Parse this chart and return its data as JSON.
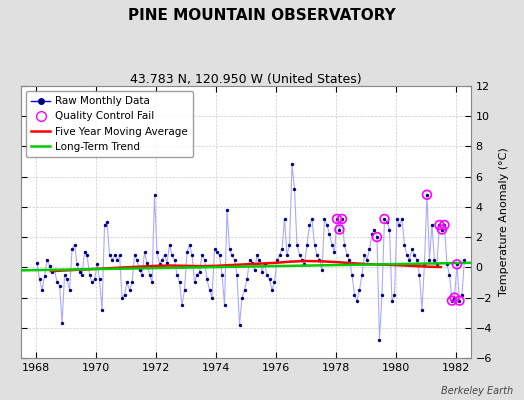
{
  "title": "PINE MOUNTAIN OBSERVATORY",
  "subtitle": "43.783 N, 120.950 W (United States)",
  "ylabel": "Temperature Anomaly (°C)",
  "attribution": "Berkeley Earth",
  "xlim": [
    1967.5,
    1982.5
  ],
  "ylim": [
    -6,
    12
  ],
  "yticks": [
    -6,
    -4,
    -2,
    0,
    2,
    4,
    6,
    8,
    10,
    12
  ],
  "xticks": [
    1968,
    1970,
    1972,
    1974,
    1976,
    1978,
    1980,
    1982
  ],
  "bg_color": "#e0e0e0",
  "plot_bg_color": "#ffffff",
  "raw_line_color": "#aaaaff",
  "raw_marker_color": "#000080",
  "qc_fail_color": "#ff00ff",
  "moving_avg_color": "#ff0000",
  "trend_color": "#00cc00",
  "raw_monthly_data": [
    [
      1968.042,
      0.3
    ],
    [
      1968.125,
      -0.8
    ],
    [
      1968.208,
      -1.5
    ],
    [
      1968.292,
      -0.6
    ],
    [
      1968.375,
      0.5
    ],
    [
      1968.458,
      0.1
    ],
    [
      1968.542,
      -0.3
    ],
    [
      1968.625,
      -0.2
    ],
    [
      1968.708,
      -1.0
    ],
    [
      1968.792,
      -1.2
    ],
    [
      1968.875,
      -3.7
    ],
    [
      1968.958,
      -0.5
    ],
    [
      1969.042,
      -0.8
    ],
    [
      1969.125,
      -1.5
    ],
    [
      1969.208,
      1.2
    ],
    [
      1969.292,
      1.5
    ],
    [
      1969.375,
      0.2
    ],
    [
      1969.458,
      -0.3
    ],
    [
      1969.542,
      -0.5
    ],
    [
      1969.625,
      1.0
    ],
    [
      1969.708,
      0.8
    ],
    [
      1969.792,
      -0.5
    ],
    [
      1969.875,
      -1.0
    ],
    [
      1969.958,
      -0.8
    ],
    [
      1970.042,
      0.2
    ],
    [
      1970.125,
      -0.8
    ],
    [
      1970.208,
      -2.8
    ],
    [
      1970.292,
      2.8
    ],
    [
      1970.375,
      3.0
    ],
    [
      1970.458,
      0.8
    ],
    [
      1970.542,
      0.5
    ],
    [
      1970.625,
      0.8
    ],
    [
      1970.708,
      0.5
    ],
    [
      1970.792,
      0.8
    ],
    [
      1970.875,
      -2.0
    ],
    [
      1970.958,
      -1.8
    ],
    [
      1971.042,
      -1.0
    ],
    [
      1971.125,
      -1.5
    ],
    [
      1971.208,
      -1.0
    ],
    [
      1971.292,
      0.8
    ],
    [
      1971.375,
      0.5
    ],
    [
      1971.458,
      -0.2
    ],
    [
      1971.542,
      -0.5
    ],
    [
      1971.625,
      1.0
    ],
    [
      1971.708,
      0.3
    ],
    [
      1971.792,
      -0.5
    ],
    [
      1971.875,
      -1.0
    ],
    [
      1971.958,
      4.8
    ],
    [
      1972.042,
      1.0
    ],
    [
      1972.125,
      0.2
    ],
    [
      1972.208,
      0.5
    ],
    [
      1972.292,
      0.8
    ],
    [
      1972.375,
      0.3
    ],
    [
      1972.458,
      1.5
    ],
    [
      1972.542,
      0.8
    ],
    [
      1972.625,
      0.5
    ],
    [
      1972.708,
      -0.5
    ],
    [
      1972.792,
      -1.0
    ],
    [
      1972.875,
      -2.5
    ],
    [
      1972.958,
      -1.5
    ],
    [
      1973.042,
      1.0
    ],
    [
      1973.125,
      1.5
    ],
    [
      1973.208,
      0.8
    ],
    [
      1973.292,
      -1.0
    ],
    [
      1973.375,
      -0.5
    ],
    [
      1973.458,
      -0.3
    ],
    [
      1973.542,
      0.8
    ],
    [
      1973.625,
      0.5
    ],
    [
      1973.708,
      -0.8
    ],
    [
      1973.792,
      -1.5
    ],
    [
      1973.875,
      -2.0
    ],
    [
      1973.958,
      1.2
    ],
    [
      1974.042,
      1.0
    ],
    [
      1974.125,
      0.8
    ],
    [
      1974.208,
      -0.5
    ],
    [
      1974.292,
      -2.5
    ],
    [
      1974.375,
      3.8
    ],
    [
      1974.458,
      1.2
    ],
    [
      1974.542,
      0.8
    ],
    [
      1974.625,
      0.5
    ],
    [
      1974.708,
      -0.5
    ],
    [
      1974.792,
      -3.8
    ],
    [
      1974.875,
      -2.0
    ],
    [
      1974.958,
      -1.5
    ],
    [
      1975.042,
      -0.8
    ],
    [
      1975.125,
      0.5
    ],
    [
      1975.208,
      0.3
    ],
    [
      1975.292,
      -0.2
    ],
    [
      1975.375,
      0.8
    ],
    [
      1975.458,
      0.5
    ],
    [
      1975.542,
      -0.3
    ],
    [
      1975.625,
      0.2
    ],
    [
      1975.708,
      -0.5
    ],
    [
      1975.792,
      -0.8
    ],
    [
      1975.875,
      -1.5
    ],
    [
      1975.958,
      -1.0
    ],
    [
      1976.042,
      0.5
    ],
    [
      1976.125,
      0.8
    ],
    [
      1976.208,
      1.2
    ],
    [
      1976.292,
      3.2
    ],
    [
      1976.375,
      0.8
    ],
    [
      1976.458,
      1.5
    ],
    [
      1976.542,
      6.8
    ],
    [
      1976.625,
      5.2
    ],
    [
      1976.708,
      1.5
    ],
    [
      1976.792,
      0.8
    ],
    [
      1976.875,
      0.5
    ],
    [
      1976.958,
      0.2
    ],
    [
      1977.042,
      1.5
    ],
    [
      1977.125,
      2.8
    ],
    [
      1977.208,
      3.2
    ],
    [
      1977.292,
      1.5
    ],
    [
      1977.375,
      0.8
    ],
    [
      1977.458,
      0.5
    ],
    [
      1977.542,
      -0.2
    ],
    [
      1977.625,
      3.2
    ],
    [
      1977.708,
      2.8
    ],
    [
      1977.792,
      2.2
    ],
    [
      1977.875,
      1.5
    ],
    [
      1977.958,
      1.0
    ],
    [
      1978.042,
      3.2
    ],
    [
      1978.125,
      2.5
    ],
    [
      1978.208,
      3.2
    ],
    [
      1978.292,
      1.5
    ],
    [
      1978.375,
      0.8
    ],
    [
      1978.458,
      0.5
    ],
    [
      1978.542,
      -0.5
    ],
    [
      1978.625,
      -1.8
    ],
    [
      1978.708,
      -2.2
    ],
    [
      1978.792,
      -1.5
    ],
    [
      1978.875,
      -0.5
    ],
    [
      1978.958,
      0.8
    ],
    [
      1979.042,
      0.5
    ],
    [
      1979.125,
      1.2
    ],
    [
      1979.208,
      2.2
    ],
    [
      1979.292,
      2.5
    ],
    [
      1979.375,
      2.0
    ],
    [
      1979.458,
      -4.8
    ],
    [
      1979.542,
      -1.8
    ],
    [
      1979.625,
      3.2
    ],
    [
      1979.708,
      3.0
    ],
    [
      1979.792,
      2.5
    ],
    [
      1979.875,
      -2.2
    ],
    [
      1979.958,
      -1.8
    ],
    [
      1980.042,
      3.2
    ],
    [
      1980.125,
      2.8
    ],
    [
      1980.208,
      3.2
    ],
    [
      1980.292,
      1.5
    ],
    [
      1980.375,
      0.8
    ],
    [
      1980.458,
      0.5
    ],
    [
      1980.542,
      1.2
    ],
    [
      1980.625,
      0.8
    ],
    [
      1980.708,
      0.5
    ],
    [
      1980.792,
      -0.5
    ],
    [
      1980.875,
      -2.8
    ],
    [
      1980.958,
      0.2
    ],
    [
      1981.042,
      4.8
    ],
    [
      1981.125,
      0.5
    ],
    [
      1981.208,
      2.8
    ],
    [
      1981.292,
      0.5
    ],
    [
      1981.375,
      0.2
    ],
    [
      1981.458,
      2.8
    ],
    [
      1981.542,
      2.5
    ],
    [
      1981.625,
      2.8
    ],
    [
      1981.708,
      0.2
    ],
    [
      1981.792,
      -0.5
    ],
    [
      1981.875,
      -2.2
    ],
    [
      1981.958,
      -2.0
    ],
    [
      1982.042,
      0.2
    ],
    [
      1982.125,
      -2.2
    ],
    [
      1982.208,
      -1.8
    ],
    [
      1982.292,
      0.5
    ]
  ],
  "qc_fail_points": [
    [
      1978.042,
      3.2
    ],
    [
      1978.125,
      2.5
    ],
    [
      1978.208,
      3.2
    ],
    [
      1979.375,
      2.0
    ],
    [
      1979.625,
      3.2
    ],
    [
      1981.042,
      4.8
    ],
    [
      1981.458,
      2.8
    ],
    [
      1981.542,
      2.5
    ],
    [
      1981.625,
      2.8
    ],
    [
      1981.875,
      -2.2
    ],
    [
      1981.958,
      -2.0
    ],
    [
      1982.042,
      0.2
    ],
    [
      1982.125,
      -2.2
    ]
  ],
  "moving_avg": [
    [
      1968.5,
      -0.25
    ],
    [
      1969.0,
      -0.2
    ],
    [
      1969.5,
      -0.15
    ],
    [
      1970.0,
      -0.1
    ],
    [
      1970.5,
      -0.05
    ],
    [
      1971.0,
      0.0
    ],
    [
      1971.5,
      0.05
    ],
    [
      1972.0,
      0.1
    ],
    [
      1972.5,
      0.12
    ],
    [
      1973.0,
      0.1
    ],
    [
      1973.5,
      0.08
    ],
    [
      1974.0,
      0.1
    ],
    [
      1974.5,
      0.15
    ],
    [
      1975.0,
      0.2
    ],
    [
      1975.5,
      0.25
    ],
    [
      1976.0,
      0.3
    ],
    [
      1976.5,
      0.38
    ],
    [
      1977.0,
      0.42
    ],
    [
      1977.5,
      0.4
    ],
    [
      1978.0,
      0.35
    ],
    [
      1978.5,
      0.28
    ],
    [
      1979.0,
      0.22
    ],
    [
      1979.5,
      0.18
    ],
    [
      1980.0,
      0.15
    ],
    [
      1980.5,
      0.1
    ],
    [
      1981.0,
      0.05
    ],
    [
      1981.5,
      0.02
    ]
  ],
  "trend_line": [
    [
      1967.5,
      -0.2
    ],
    [
      1982.5,
      0.3
    ]
  ]
}
